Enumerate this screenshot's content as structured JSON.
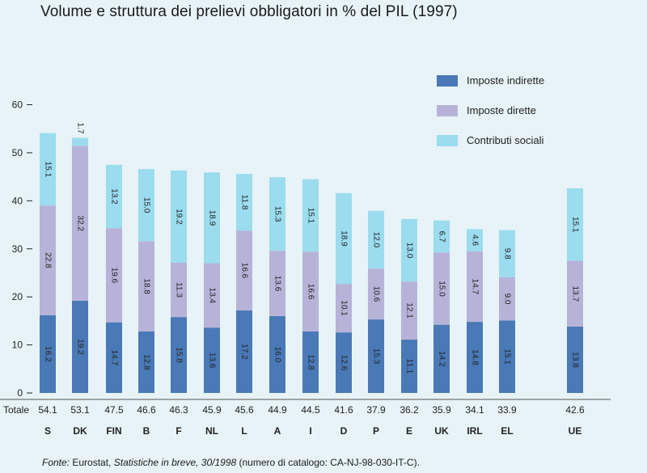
{
  "title": "Volume e struttura dei prelievi obbligatori in % del PIL (1997)",
  "source": {
    "prefix": "Fonte:",
    "text1": " Eurostat, ",
    "italic": "Statistiche in breve, 30/1998",
    "text2": " (numero di catalogo: CA-NJ-98-030-IT-C)."
  },
  "colors": {
    "background": "#e7f3f7",
    "dirette": "#b7b3d8",
    "indirette": "#4a79b7",
    "sociali": "#9bdcef"
  },
  "chart_data": {
    "type": "bar",
    "stacked": true,
    "categories": [
      "S",
      "DK",
      "FIN",
      "B",
      "F",
      "NL",
      "L",
      "A",
      "I",
      "D",
      "P",
      "E",
      "UK",
      "IRL",
      "EL",
      "UE"
    ],
    "series": [
      {
        "name": "Imposte indirette",
        "values": [
          16.2,
          19.2,
          14.7,
          12.8,
          15.8,
          13.6,
          17.2,
          16.0,
          12.8,
          12.6,
          15.3,
          11.1,
          14.2,
          14.8,
          15.1,
          13.8
        ]
      },
      {
        "name": "Imposte dirette",
        "values": [
          22.8,
          32.2,
          19.6,
          18.8,
          11.3,
          13.4,
          16.6,
          13.6,
          16.6,
          10.1,
          10.6,
          12.1,
          15.0,
          14.7,
          9.0,
          13.7
        ]
      },
      {
        "name": "Contributi sociali",
        "values": [
          15.1,
          1.7,
          13.2,
          15.0,
          19.2,
          18.9,
          11.8,
          15.3,
          15.1,
          18.9,
          12.0,
          13.0,
          6.7,
          4.6,
          9.8,
          15.1
        ]
      }
    ],
    "value_labels": [
      [
        "16.2",
        "22.8",
        "15.1"
      ],
      [
        "19.2",
        "32.2",
        "1.7"
      ],
      [
        "14.7",
        "19.6",
        "13.2"
      ],
      [
        "12.8",
        "18.8",
        "15.0"
      ],
      [
        "15.8",
        "11.3",
        "19.2"
      ],
      [
        "13.6",
        "13.4",
        "18.9"
      ],
      [
        "17.2",
        "16.6",
        "11.8"
      ],
      [
        "16.0",
        "13.6",
        "15.3"
      ],
      [
        "12.8",
        "16.6",
        "15.1"
      ],
      [
        "12.6",
        "10.1",
        "18.9"
      ],
      [
        "15.3",
        "10.6",
        "12.0"
      ],
      [
        "11.1",
        "12.1",
        "13.0"
      ],
      [
        "14.2",
        "15.0",
        "6.7"
      ],
      [
        "14.8",
        "14.7",
        "4.6"
      ],
      [
        "15.1",
        "9.0",
        "9.8"
      ],
      [
        "13.8",
        "13.7",
        "15.1"
      ]
    ],
    "totals_label": "Totale",
    "totals": [
      "54.1",
      "53.1",
      "47.5",
      "46.6",
      "46.3",
      "45.9",
      "45.6",
      "44.9",
      "44.5",
      "41.6",
      "37.9",
      "36.2",
      "35.9",
      "34.1",
      "33.9",
      "42.6"
    ],
    "y_ticks": [
      "0",
      "10",
      "20",
      "30",
      "40",
      "50",
      "60"
    ],
    "ylim": [
      0,
      60
    ],
    "legend": [
      "Imposte indirette",
      "Imposte dirette",
      "Contributi sociali"
    ],
    "legend_position": "top-right",
    "grid": false
  }
}
